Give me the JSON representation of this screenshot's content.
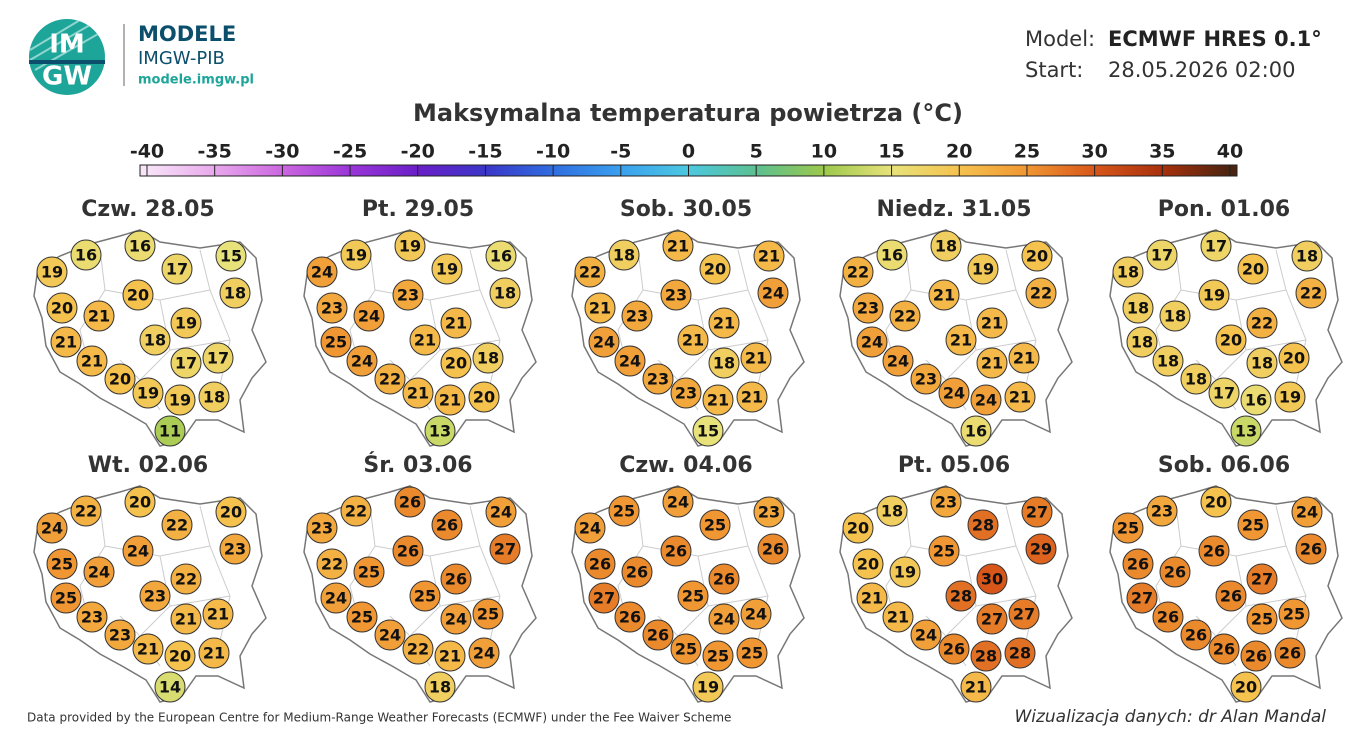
{
  "header": {
    "logo_top": "IM",
    "logo_bottom": "GW",
    "brand": "MODELE",
    "org": "IMGW-PIB",
    "url": "modele.imgw.pl",
    "model_label": "Model:",
    "model": "ECMWF HRES 0.1°",
    "start_label": "Start:",
    "start": "28.05.2026 02:00"
  },
  "colorbar": {
    "title": "Maksymalna temperatura powietrza (°C)",
    "ticks": [
      -40,
      -35,
      -30,
      -25,
      -20,
      -15,
      -10,
      -5,
      0,
      5,
      10,
      15,
      20,
      25,
      30,
      35,
      40
    ],
    "colors": [
      "#f8e4f8",
      "#e8a8ec",
      "#cc66e0",
      "#9a36d8",
      "#6a1ec8",
      "#3a36c8",
      "#2f6ee0",
      "#3aa0ee",
      "#4cc8e0",
      "#5cc090",
      "#9cc84c",
      "#e8e27a",
      "#f5c24e",
      "#f09632",
      "#d8561a",
      "#a8300c",
      "#4a2410"
    ]
  },
  "maps": [
    {
      "date": "Czw. 28.05",
      "values": [
        19,
        16,
        16,
        17,
        15,
        18,
        20,
        21,
        20,
        19,
        21,
        18,
        17,
        17,
        21,
        20,
        19,
        19,
        18,
        11
      ]
    },
    {
      "date": "Pt. 29.05",
      "values": [
        24,
        19,
        19,
        19,
        16,
        18,
        23,
        24,
        23,
        21,
        25,
        21,
        20,
        18,
        24,
        22,
        21,
        21,
        20,
        13
      ]
    },
    {
      "date": "Sob. 30.05",
      "values": [
        22,
        18,
        21,
        20,
        21,
        24,
        21,
        23,
        23,
        21,
        24,
        21,
        18,
        21,
        24,
        23,
        23,
        21,
        21,
        15
      ]
    },
    {
      "date": "Niedz. 31.05",
      "values": [
        22,
        16,
        18,
        19,
        20,
        22,
        23,
        22,
        21,
        21,
        24,
        21,
        21,
        21,
        24,
        23,
        24,
        24,
        21,
        16
      ]
    },
    {
      "date": "Pon. 01.06",
      "values": [
        18,
        17,
        17,
        20,
        18,
        22,
        18,
        18,
        19,
        22,
        18,
        20,
        18,
        20,
        18,
        18,
        17,
        16,
        19,
        13
      ]
    },
    {
      "date": "Wt. 02.06",
      "values": [
        24,
        22,
        20,
        22,
        20,
        23,
        25,
        24,
        24,
        22,
        25,
        23,
        21,
        21,
        23,
        23,
        21,
        20,
        21,
        14
      ]
    },
    {
      "date": "Śr. 03.06",
      "values": [
        23,
        22,
        26,
        26,
        24,
        27,
        22,
        25,
        26,
        26,
        24,
        25,
        24,
        25,
        25,
        24,
        22,
        21,
        24,
        18
      ]
    },
    {
      "date": "Czw. 04.06",
      "values": [
        24,
        25,
        24,
        25,
        23,
        26,
        26,
        26,
        26,
        26,
        27,
        25,
        24,
        24,
        26,
        26,
        25,
        25,
        25,
        19
      ]
    },
    {
      "date": "Pt. 05.06",
      "values": [
        20,
        18,
        23,
        28,
        27,
        29,
        20,
        19,
        25,
        30,
        21,
        28,
        27,
        27,
        21,
        24,
        26,
        28,
        28,
        21
      ]
    },
    {
      "date": "Sob. 06.06",
      "values": [
        25,
        23,
        20,
        25,
        24,
        26,
        26,
        26,
        26,
        27,
        27,
        26,
        25,
        25,
        26,
        26,
        26,
        26,
        26,
        20
      ]
    }
  ],
  "footer": {
    "source": "Data provided by the European Centre for Medium-Range Weather Forecasts (ECMWF) under the Fee Waiver Scheme",
    "credit": "Wizualizacja danych: dr Alan Mandal"
  }
}
